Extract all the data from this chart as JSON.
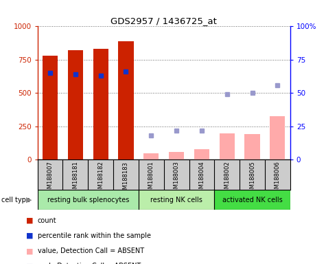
{
  "title": "GDS2957 / 1436725_at",
  "samples": [
    "GSM188007",
    "GSM188181",
    "GSM188182",
    "GSM188183",
    "GSM188001",
    "GSM188003",
    "GSM188004",
    "GSM188002",
    "GSM188005",
    "GSM188006"
  ],
  "groups": [
    {
      "label": "resting bulk splenocytes",
      "color": "#aaeaaa",
      "start": 0,
      "end": 4
    },
    {
      "label": "resting NK cells",
      "color": "#bbeeaa",
      "start": 4,
      "end": 7
    },
    {
      "label": "activated NK cells",
      "color": "#44dd44",
      "start": 7,
      "end": 10
    }
  ],
  "count_values": [
    780,
    820,
    830,
    890,
    null,
    null,
    null,
    null,
    null,
    null
  ],
  "count_absent": [
    null,
    null,
    null,
    null,
    50,
    60,
    80,
    200,
    195,
    325
  ],
  "percentile_values": [
    65,
    64,
    63,
    66,
    null,
    null,
    null,
    null,
    null,
    null
  ],
  "rank_absent": [
    null,
    null,
    null,
    null,
    18,
    22,
    22,
    49,
    50,
    56
  ],
  "ylim_left": [
    0,
    1000
  ],
  "ylim_right": [
    0,
    100
  ],
  "yticks_left": [
    0,
    250,
    500,
    750,
    1000
  ],
  "yticks_right": [
    0,
    25,
    50,
    75,
    100
  ],
  "ytick_labels_right": [
    "0",
    "25",
    "50",
    "75",
    "100%"
  ],
  "bar_color_present": "#cc2200",
  "bar_color_absent": "#ffaaaa",
  "dot_color_present": "#1133cc",
  "dot_color_absent": "#9999cc",
  "grid_color": "#666666",
  "sample_bg": "#cccccc"
}
